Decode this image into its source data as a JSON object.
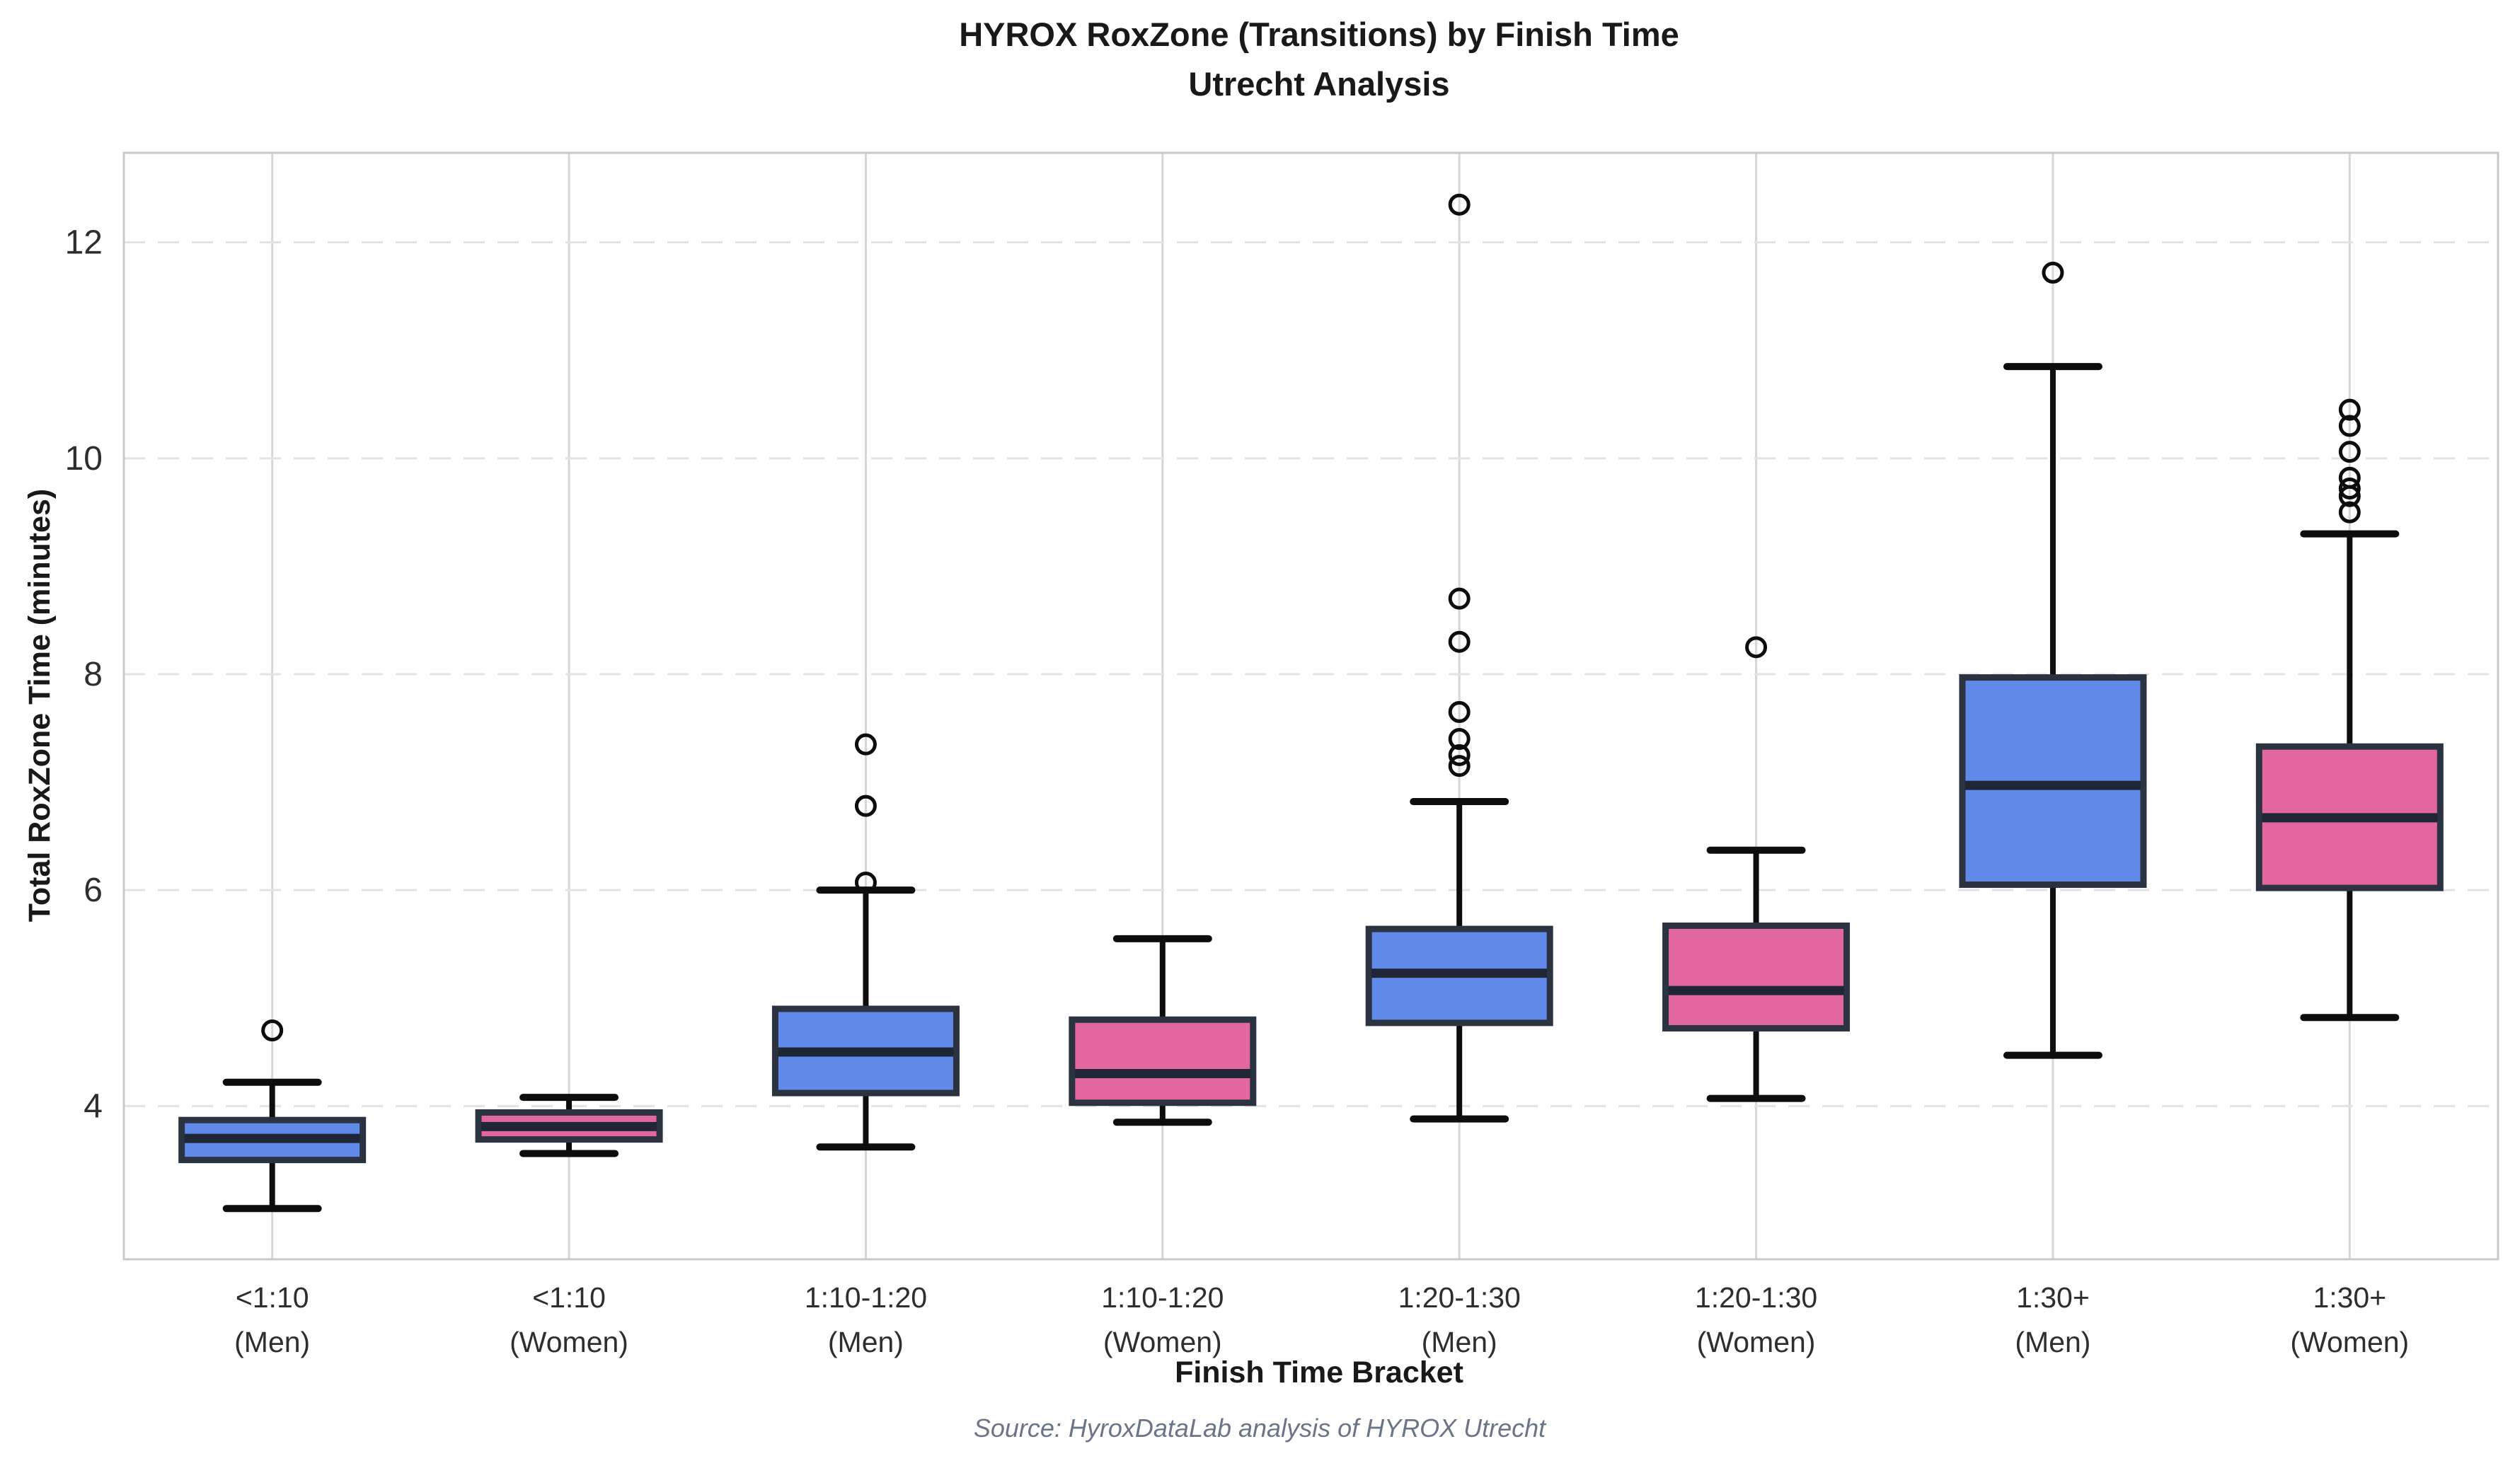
{
  "title": {
    "line1": "HYROX RoxZone (Transitions) by Finish Time",
    "line2": "Utrecht Analysis"
  },
  "source_caption": "Source: HyroxDataLab analysis of HYROX Utrecht",
  "colors": {
    "men_fill": "#6189e9",
    "women_fill": "#e2679e",
    "box_edge": "#2b3240",
    "median": "#1f2737",
    "whisker": "#0d0d0d",
    "flier": "#0d0d0d",
    "grid_horizontal": "#e3e3e3",
    "grid_vertical": "#d6d6d6",
    "spine": "#c9c9c9",
    "tick_text": "#2e2e2e",
    "title_text": "#191919",
    "source_text": "#6b7586"
  },
  "chart_data": {
    "type": "boxplot",
    "title": "HYROX RoxZone (Transitions) by Finish Time",
    "subtitle": "Utrecht Analysis",
    "xlabel": "Finish Time Bracket",
    "ylabel": "Total RoxZone Time (minutes)",
    "ylim": [
      2.58,
      12.83
    ],
    "yticks": [
      4,
      6,
      8,
      10,
      12
    ],
    "grid": {
      "horizontal": "dashed",
      "vertical": "solid"
    },
    "legend": "none",
    "series": [
      {
        "bracket": "<1:10",
        "sex": "Men",
        "label_line1": "<1:10",
        "label_line2": "(Men)",
        "whislo": 3.05,
        "q1": 3.5,
        "med": 3.7,
        "q3": 3.87,
        "whishi": 4.22,
        "outliers": [
          4.7
        ]
      },
      {
        "bracket": "<1:10",
        "sex": "Women",
        "label_line1": "<1:10",
        "label_line2": "(Women)",
        "whislo": 3.56,
        "q1": 3.69,
        "med": 3.81,
        "q3": 3.94,
        "whishi": 4.08,
        "outliers": []
      },
      {
        "bracket": "1:10-1:20",
        "sex": "Men",
        "label_line1": "1:10-1:20",
        "label_line2": "(Men)",
        "whislo": 3.62,
        "q1": 4.12,
        "med": 4.5,
        "q3": 4.9,
        "whishi": 6.0,
        "outliers": [
          6.07,
          6.78,
          7.35
        ]
      },
      {
        "bracket": "1:10-1:20",
        "sex": "Women",
        "label_line1": "1:10-1:20",
        "label_line2": "(Women)",
        "whislo": 3.85,
        "q1": 4.03,
        "med": 4.3,
        "q3": 4.8,
        "whishi": 5.55,
        "outliers": []
      },
      {
        "bracket": "1:20-1:30",
        "sex": "Men",
        "label_line1": "1:20-1:30",
        "label_line2": "(Men)",
        "whislo": 3.88,
        "q1": 4.77,
        "med": 5.23,
        "q3": 5.64,
        "whishi": 6.82,
        "outliers": [
          7.15,
          7.25,
          7.4,
          7.65,
          8.3,
          8.7,
          12.35
        ]
      },
      {
        "bracket": "1:20-1:30",
        "sex": "Women",
        "label_line1": "1:20-1:30",
        "label_line2": "(Women)",
        "whislo": 4.07,
        "q1": 4.72,
        "med": 5.07,
        "q3": 5.67,
        "whishi": 6.37,
        "outliers": [
          8.25
        ]
      },
      {
        "bracket": "1:30+",
        "sex": "Men",
        "label_line1": "1:30+",
        "label_line2": "(Men)",
        "whislo": 4.47,
        "q1": 6.05,
        "med": 6.97,
        "q3": 7.97,
        "whishi": 10.85,
        "outliers": [
          11.72
        ]
      },
      {
        "bracket": "1:30+",
        "sex": "Women",
        "label_line1": "1:30+",
        "label_line2": "(Women)",
        "whislo": 4.82,
        "q1": 6.02,
        "med": 6.67,
        "q3": 7.33,
        "whishi": 9.3,
        "outliers": [
          9.5,
          9.65,
          9.72,
          9.82,
          10.06,
          10.3,
          10.45
        ]
      }
    ]
  }
}
